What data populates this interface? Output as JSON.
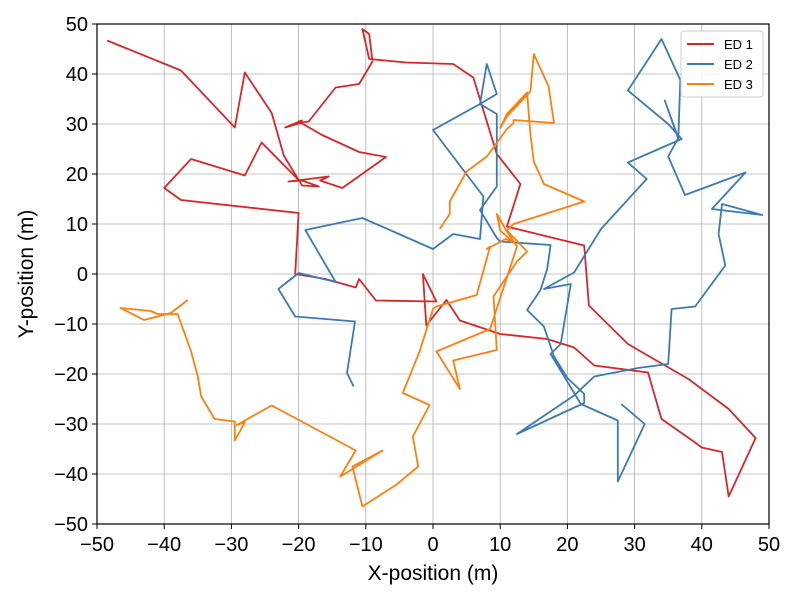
{
  "chart_data": {
    "type": "line",
    "xlabel": "X-position (m)",
    "ylabel": "Y-position (m)",
    "xlim": [
      -50,
      50
    ],
    "ylim": [
      -50,
      50
    ],
    "xticks": [
      -50,
      -40,
      -30,
      -20,
      -10,
      0,
      10,
      20,
      30,
      40,
      50
    ],
    "yticks": [
      -50,
      -40,
      -30,
      -20,
      -10,
      0,
      10,
      20,
      30,
      40,
      50
    ],
    "xtick_labels": [
      "−50",
      "−40",
      "−30",
      "−20",
      "−10",
      "0",
      "10",
      "20",
      "30",
      "40",
      "50"
    ],
    "ytick_labels": [
      "−50",
      "−40",
      "−30",
      "−20",
      "−10",
      "0",
      "10",
      "20",
      "30",
      "40",
      "50"
    ],
    "grid": true,
    "legend_position": "top-right",
    "series": [
      {
        "name": "ED 1",
        "color": "#d62728",
        "points": [
          [
            -48.5,
            46.7
          ],
          [
            -37.5,
            40.7
          ],
          [
            -29.5,
            29.3
          ],
          [
            -28,
            40.3
          ],
          [
            -24,
            32.2
          ],
          [
            -22.2,
            23.7
          ],
          [
            -20,
            18.8
          ],
          [
            -25.5,
            26.3
          ],
          [
            -28,
            19.7
          ],
          [
            -36,
            23
          ],
          [
            -40,
            17.2
          ],
          [
            -37.5,
            14.8
          ],
          [
            -20,
            12.2
          ],
          [
            -20.5,
            0
          ],
          [
            -16,
            -1
          ],
          [
            -11.5,
            -2.7
          ],
          [
            -11,
            -1
          ],
          [
            -8.5,
            -5.3
          ],
          [
            0.5,
            -5.5
          ],
          [
            -1.5,
            0
          ],
          [
            -1,
            -10.3
          ],
          [
            2,
            -5.2
          ],
          [
            4,
            -9.3
          ],
          [
            10,
            -12
          ],
          [
            17,
            -13
          ],
          [
            21,
            -14.7
          ],
          [
            24,
            -18.3
          ],
          [
            32,
            -19.7
          ],
          [
            34,
            -29
          ],
          [
            39,
            -33.7
          ],
          [
            40,
            -34.7
          ],
          [
            43,
            -35.6
          ],
          [
            44,
            -44.5
          ],
          [
            48,
            -32.8
          ],
          [
            44,
            -27
          ],
          [
            38,
            -21
          ],
          [
            29,
            -14
          ],
          [
            23.2,
            -6.3
          ],
          [
            22.5,
            5.7
          ],
          [
            11,
            9.5
          ],
          [
            13,
            18
          ],
          [
            9.5,
            24
          ],
          [
            6,
            39.3
          ],
          [
            3,
            42
          ],
          [
            -4,
            42.3
          ],
          [
            -9.5,
            43
          ],
          [
            -10.5,
            49
          ],
          [
            -9.5,
            48
          ],
          [
            -9,
            42.5
          ],
          [
            -11,
            38
          ],
          [
            -14.5,
            37.3
          ],
          [
            -18.5,
            30.5
          ],
          [
            -19.5,
            30.3
          ],
          [
            -22,
            29.3
          ],
          [
            -19.5,
            30.7
          ],
          [
            -20,
            30.5
          ],
          [
            -16.5,
            27.8
          ],
          [
            -11,
            24.4
          ],
          [
            -7,
            23.4
          ],
          [
            -13.5,
            17.2
          ],
          [
            -16.8,
            18.7
          ],
          [
            -15.5,
            19.5
          ],
          [
            -21.5,
            18.5
          ],
          [
            -19.5,
            18.7
          ],
          [
            -17,
            17.5
          ],
          [
            -19.5,
            17.7
          ],
          [
            -20,
            19
          ]
        ]
      },
      {
        "name": "ED 2",
        "color": "#3a7ab5",
        "points": [
          [
            -11.8,
            -22.5
          ],
          [
            -12.8,
            -19.8
          ],
          [
            -11.6,
            -9.5
          ],
          [
            -20.5,
            -8.5
          ],
          [
            -23,
            -3
          ],
          [
            -20,
            0.2
          ],
          [
            -14.5,
            -1.6
          ],
          [
            -19,
            8.8
          ],
          [
            -10.5,
            11.2
          ],
          [
            0,
            5
          ],
          [
            3,
            8
          ],
          [
            3,
            8
          ],
          [
            7,
            7
          ],
          [
            7.5,
            15.5
          ],
          [
            0,
            28.8
          ],
          [
            7,
            34
          ],
          [
            8,
            42
          ],
          [
            9.5,
            36
          ],
          [
            7,
            34
          ],
          [
            9.5,
            32
          ],
          [
            9.5,
            17.5
          ],
          [
            7,
            12.8
          ],
          [
            9.5,
            7.2
          ],
          [
            10,
            6.5
          ],
          [
            17.5,
            5.8
          ],
          [
            17,
            1
          ],
          [
            16,
            -3.2
          ],
          [
            14,
            -7.2
          ],
          [
            16.5,
            -10.5
          ],
          [
            18,
            -16.5
          ],
          [
            20,
            -20.8
          ],
          [
            22.5,
            -24
          ],
          [
            22.5,
            -25.8
          ],
          [
            12.5,
            -32
          ],
          [
            21,
            -24.3
          ],
          [
            24,
            -20.5
          ],
          [
            30.5,
            -18.8
          ],
          [
            35,
            -18
          ],
          [
            35.5,
            -7
          ],
          [
            39,
            -6.5
          ],
          [
            43.5,
            1.7
          ],
          [
            42.5,
            8
          ],
          [
            43,
            14
          ],
          [
            49,
            11.8
          ],
          [
            41.5,
            13
          ],
          [
            46.5,
            20.3
          ],
          [
            37.5,
            15.8
          ],
          [
            35,
            23.5
          ],
          [
            36.5,
            27.2
          ],
          [
            34.5,
            34.7
          ],
          [
            36.5,
            27
          ],
          [
            36.8,
            38.8
          ],
          [
            34,
            47
          ],
          [
            29,
            36.7
          ],
          [
            35,
            30
          ],
          [
            37,
            27
          ],
          [
            29,
            22.3
          ],
          [
            31.8,
            19
          ],
          [
            25,
            9
          ],
          [
            21,
            0.3
          ],
          [
            16.5,
            -3
          ],
          [
            20.5,
            -2
          ],
          [
            19,
            -14
          ],
          [
            17.5,
            -16
          ],
          [
            22,
            -26
          ],
          [
            27.5,
            -29.3
          ],
          [
            27.5,
            -41.5
          ],
          [
            31.5,
            -30
          ],
          [
            28,
            -26
          ]
        ]
      },
      {
        "name": "ED 3",
        "color": "#ff7f0e",
        "points": [
          [
            -36.5,
            -5.2
          ],
          [
            -39,
            -7.8
          ],
          [
            -43,
            -9.2
          ],
          [
            -46.5,
            -6.8
          ],
          [
            -42,
            -7.4
          ],
          [
            -41,
            -8
          ],
          [
            -38,
            -8
          ],
          [
            -36,
            -15.5
          ],
          [
            -35,
            -20.5
          ],
          [
            -34.5,
            -24.5
          ],
          [
            -32.5,
            -29
          ],
          [
            -29.5,
            -29.5
          ],
          [
            -29.5,
            -33.3
          ],
          [
            -28,
            -29.7
          ],
          [
            -29.2,
            -30.2
          ],
          [
            -24,
            -26.3
          ],
          [
            -15.5,
            -32.4
          ],
          [
            -11.5,
            -35.3
          ],
          [
            -13.8,
            -40.5
          ],
          [
            -7.5,
            -35.3
          ],
          [
            -12,
            -38.5
          ],
          [
            -10.5,
            -46.5
          ],
          [
            -5.5,
            -42.2
          ],
          [
            -2.2,
            -38.5
          ],
          [
            -3,
            -32.5
          ],
          [
            -0.5,
            -26.2
          ],
          [
            -4.5,
            -23.8
          ],
          [
            -2,
            -15.5
          ],
          [
            0,
            -7
          ],
          [
            0.5,
            -6.5
          ],
          [
            6.5,
            -4.2
          ],
          [
            8.5,
            5.5
          ],
          [
            8,
            5
          ],
          [
            10.8,
            7
          ],
          [
            12,
            6.3
          ],
          [
            10,
            8.7
          ],
          [
            9.5,
            12
          ],
          [
            11,
            8.5
          ],
          [
            12.5,
            5.5
          ],
          [
            8.5,
            -11
          ],
          [
            0.5,
            -15.5
          ],
          [
            4,
            -23
          ],
          [
            3,
            -17.3
          ],
          [
            9.5,
            -15.2
          ],
          [
            9,
            -4.5
          ],
          [
            12.5,
            2.5
          ],
          [
            14,
            4.5
          ],
          [
            11,
            8.7
          ],
          [
            12,
            10
          ],
          [
            22.5,
            14.5
          ],
          [
            16.5,
            18
          ],
          [
            15,
            22.5
          ],
          [
            14.5,
            28
          ],
          [
            14,
            36.3
          ],
          [
            11,
            32
          ],
          [
            10,
            29.2
          ],
          [
            11,
            31.5
          ],
          [
            14.5,
            36.5
          ],
          [
            15,
            44
          ],
          [
            17.2,
            37.5
          ],
          [
            18,
            30.2
          ],
          [
            12,
            30.8
          ],
          [
            12,
            30.2
          ],
          [
            11,
            29
          ],
          [
            8,
            23.5
          ],
          [
            5,
            20.5
          ],
          [
            2.5,
            14.5
          ],
          [
            2.5,
            12
          ],
          [
            1,
            9
          ]
        ]
      }
    ]
  }
}
